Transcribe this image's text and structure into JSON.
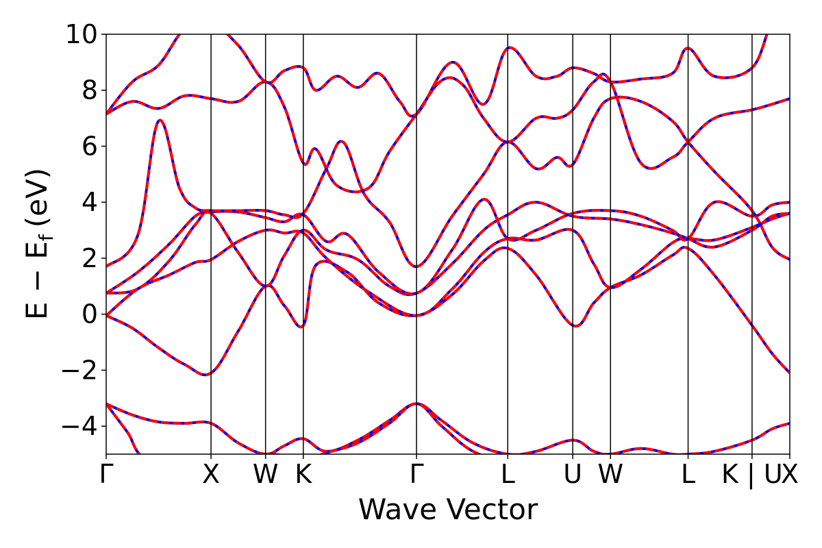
{
  "chart_data": {
    "type": "line",
    "title": "",
    "xlabel": "Wave Vector",
    "ylabel": "E − E",
    "ylabel_subscript": "f",
    "ylabel_unit": "(eV)",
    "ylim": [
      -5,
      10
    ],
    "yticks": [
      {
        "value": 10,
        "label": "10"
      },
      {
        "value": 8,
        "label": "8"
      },
      {
        "value": 6,
        "label": "6"
      },
      {
        "value": 4,
        "label": "4"
      },
      {
        "value": 2,
        "label": "2"
      },
      {
        "value": 0,
        "label": "0"
      },
      {
        "value": -2,
        "label": "−2"
      },
      {
        "value": -4,
        "label": "−4"
      }
    ],
    "xlim": [
      0,
      6.52
    ],
    "kpoints": [
      {
        "label": "Γ",
        "x": 0.0
      },
      {
        "label": "X",
        "x": 1.0
      },
      {
        "label": "W",
        "x": 1.52
      },
      {
        "label": "K",
        "x": 1.88
      },
      {
        "label": "Γ",
        "x": 2.96
      },
      {
        "label": "L",
        "x": 3.83
      },
      {
        "label": "U",
        "x": 4.45
      },
      {
        "label": "W",
        "x": 4.81
      },
      {
        "label": "L",
        "x": 5.55
      },
      {
        "label": "K | U",
        "x": 6.16
      },
      {
        "label": "X",
        "x": 6.52
      }
    ],
    "series_style": [
      {
        "color": "#0000ff",
        "style": "solid"
      },
      {
        "color": "#ff0000",
        "style": "dashed"
      }
    ],
    "bands": [
      [
        [
          0,
          -0.05
        ],
        [
          0.25,
          -0.5
        ],
        [
          0.5,
          -1.2
        ],
        [
          0.75,
          -1.8
        ],
        [
          1,
          -2.1
        ],
        [
          1.26,
          -0.6
        ],
        [
          1.52,
          1.0
        ],
        [
          1.7,
          0.3
        ],
        [
          1.88,
          -0.4
        ],
        [
          2.0,
          1.75
        ],
        [
          2.3,
          1.5
        ],
        [
          2.6,
          0.4
        ],
        [
          2.96,
          -0.05
        ],
        [
          3.3,
          0.7
        ],
        [
          3.6,
          1.9
        ],
        [
          3.83,
          2.35
        ],
        [
          4.1,
          1.4
        ],
        [
          4.45,
          -0.4
        ],
        [
          4.65,
          0.4
        ],
        [
          4.81,
          0.95
        ],
        [
          5.1,
          1.4
        ],
        [
          5.4,
          2.1
        ],
        [
          5.55,
          2.35
        ],
        [
          5.8,
          1.4
        ],
        [
          6.16,
          -0.4
        ],
        [
          6.35,
          -1.4
        ],
        [
          6.52,
          -2.1
        ]
      ],
      [
        [
          0,
          -0.05
        ],
        [
          0.3,
          0.9
        ],
        [
          0.6,
          1.4
        ],
        [
          0.85,
          1.85
        ],
        [
          1,
          1.95
        ],
        [
          1.26,
          2.6
        ],
        [
          1.52,
          3.0
        ],
        [
          1.7,
          2.9
        ],
        [
          1.88,
          2.9
        ],
        [
          2.1,
          2.0
        ],
        [
          2.5,
          0.8
        ],
        [
          2.96,
          -0.05
        ],
        [
          3.3,
          0.9
        ],
        [
          3.6,
          2.2
        ],
        [
          3.83,
          2.7
        ],
        [
          4.1,
          2.65
        ],
        [
          4.45,
          3.0
        ],
        [
          4.65,
          1.8
        ],
        [
          4.81,
          0.95
        ],
        [
          5.1,
          1.6
        ],
        [
          5.4,
          2.55
        ],
        [
          5.55,
          2.7
        ],
        [
          5.8,
          2.65
        ],
        [
          6.16,
          3.1
        ],
        [
          6.35,
          3.4
        ],
        [
          6.52,
          3.6
        ]
      ],
      [
        [
          0,
          0.75
        ],
        [
          0.3,
          0.9
        ],
        [
          0.6,
          1.9
        ],
        [
          0.85,
          3.2
        ],
        [
          1,
          3.6
        ],
        [
          1.26,
          2.2
        ],
        [
          1.52,
          1.0
        ],
        [
          1.7,
          2.1
        ],
        [
          1.88,
          3.0
        ],
        [
          2.1,
          2.3
        ],
        [
          2.4,
          1.95
        ],
        [
          2.7,
          1.0
        ],
        [
          2.96,
          0.75
        ],
        [
          3.3,
          1.8
        ],
        [
          3.6,
          3.0
        ],
        [
          3.83,
          3.55
        ],
        [
          4.1,
          4.0
        ],
        [
          4.45,
          3.5
        ],
        [
          4.81,
          3.4
        ],
        [
          5.1,
          3.2
        ],
        [
          5.4,
          2.9
        ],
        [
          5.55,
          2.7
        ],
        [
          5.8,
          2.4
        ],
        [
          6.16,
          3.0
        ],
        [
          6.35,
          3.5
        ],
        [
          6.52,
          3.6
        ]
      ],
      [
        [
          0,
          0.75
        ],
        [
          0.3,
          1.5
        ],
        [
          0.6,
          2.5
        ],
        [
          0.85,
          3.5
        ],
        [
          1,
          3.65
        ],
        [
          1.26,
          3.65
        ],
        [
          1.52,
          3.45
        ],
        [
          1.7,
          3.3
        ],
        [
          1.88,
          3.55
        ],
        [
          2.1,
          2.6
        ],
        [
          2.3,
          2.85
        ],
        [
          2.6,
          1.5
        ],
        [
          2.96,
          0.75
        ],
        [
          3.3,
          2.3
        ],
        [
          3.6,
          4.1
        ],
        [
          3.83,
          2.7
        ],
        [
          4.1,
          3.0
        ],
        [
          4.45,
          3.6
        ],
        [
          4.81,
          3.7
        ],
        [
          5.1,
          3.5
        ],
        [
          5.4,
          3.0
        ],
        [
          5.55,
          2.7
        ],
        [
          5.8,
          4.0
        ],
        [
          6.16,
          3.5
        ],
        [
          6.35,
          3.9
        ],
        [
          6.52,
          4.0
        ]
      ],
      [
        [
          0,
          1.7
        ],
        [
          0.3,
          2.8
        ],
        [
          0.5,
          6.9
        ],
        [
          0.7,
          4.5
        ],
        [
          0.85,
          3.8
        ],
        [
          1,
          3.7
        ],
        [
          1.26,
          3.7
        ],
        [
          1.52,
          3.7
        ],
        [
          1.7,
          3.55
        ],
        [
          1.88,
          3.6
        ],
        [
          2.1,
          5.2
        ],
        [
          2.26,
          6.15
        ],
        [
          2.46,
          4.3
        ],
        [
          2.7,
          3.3
        ],
        [
          2.96,
          1.7
        ],
        [
          3.3,
          3.5
        ],
        [
          3.6,
          5.0
        ],
        [
          3.83,
          6.15
        ],
        [
          4.1,
          5.2
        ],
        [
          4.3,
          5.6
        ],
        [
          4.45,
          5.35
        ],
        [
          4.65,
          7.0
        ],
        [
          4.81,
          7.7
        ],
        [
          5.1,
          7.6
        ],
        [
          5.4,
          6.9
        ],
        [
          5.55,
          6.15
        ],
        [
          5.8,
          5.1
        ],
        [
          6.16,
          3.7
        ],
        [
          6.35,
          2.4
        ],
        [
          6.52,
          1.95
        ]
      ],
      [
        [
          0,
          7.15
        ],
        [
          0.25,
          7.6
        ],
        [
          0.5,
          7.35
        ],
        [
          0.75,
          7.8
        ],
        [
          1,
          7.7
        ],
        [
          1.26,
          7.6
        ],
        [
          1.52,
          8.3
        ],
        [
          1.7,
          7.4
        ],
        [
          1.88,
          5.4
        ],
        [
          2.0,
          5.9
        ],
        [
          2.2,
          4.6
        ],
        [
          2.5,
          4.5
        ],
        [
          2.7,
          5.8
        ],
        [
          2.96,
          7.15
        ],
        [
          3.2,
          8.35
        ],
        [
          3.4,
          8.2
        ],
        [
          3.6,
          7.0
        ],
        [
          3.83,
          6.15
        ],
        [
          4.1,
          7.0
        ],
        [
          4.3,
          7.0
        ],
        [
          4.45,
          7.3
        ],
        [
          4.65,
          8.3
        ],
        [
          4.81,
          8.3
        ],
        [
          5.1,
          5.4
        ],
        [
          5.4,
          5.6
        ],
        [
          5.55,
          6.15
        ],
        [
          5.8,
          7.0
        ],
        [
          6.16,
          7.3
        ],
        [
          6.35,
          7.5
        ],
        [
          6.52,
          7.7
        ]
      ],
      [
        [
          0,
          7.15
        ],
        [
          0.25,
          8.3
        ],
        [
          0.5,
          8.9
        ],
        [
          0.75,
          10.2
        ],
        [
          1,
          10.4
        ],
        [
          1.26,
          9.6
        ],
        [
          1.52,
          8.3
        ],
        [
          1.7,
          8.7
        ],
        [
          1.88,
          8.8
        ],
        [
          2.0,
          8.0
        ],
        [
          2.2,
          8.5
        ],
        [
          2.4,
          8.1
        ],
        [
          2.6,
          8.6
        ],
        [
          2.8,
          7.6
        ],
        [
          2.96,
          7.15
        ],
        [
          3.3,
          9.0
        ],
        [
          3.6,
          7.5
        ],
        [
          3.83,
          9.5
        ],
        [
          4.1,
          8.5
        ],
        [
          4.3,
          8.5
        ],
        [
          4.45,
          8.8
        ],
        [
          4.65,
          8.6
        ],
        [
          4.81,
          8.3
        ],
        [
          5.1,
          8.4
        ],
        [
          5.4,
          8.6
        ],
        [
          5.55,
          9.5
        ],
        [
          5.8,
          8.5
        ],
        [
          6.16,
          8.8
        ],
        [
          6.35,
          10.4
        ],
        [
          6.52,
          10.6
        ]
      ],
      [
        [
          0,
          -3.2
        ],
        [
          0.25,
          -3.6
        ],
        [
          0.5,
          -3.85
        ],
        [
          0.75,
          -3.9
        ],
        [
          1,
          -3.9
        ],
        [
          1.26,
          -4.6
        ],
        [
          1.52,
          -5.0
        ],
        [
          1.7,
          -4.7
        ],
        [
          1.88,
          -4.45
        ],
        [
          2.1,
          -4.9
        ],
        [
          2.4,
          -4.5
        ],
        [
          2.7,
          -3.8
        ],
        [
          2.96,
          -3.2
        ],
        [
          3.2,
          -3.8
        ],
        [
          3.5,
          -4.6
        ],
        [
          3.83,
          -5.0
        ],
        [
          4.1,
          -4.9
        ],
        [
          4.45,
          -4.5
        ],
        [
          4.65,
          -4.9
        ],
        [
          4.81,
          -5.0
        ],
        [
          5.1,
          -4.8
        ],
        [
          5.4,
          -5.0
        ],
        [
          5.55,
          -5.0
        ],
        [
          5.8,
          -4.9
        ],
        [
          6.16,
          -4.5
        ],
        [
          6.35,
          -4.1
        ],
        [
          6.52,
          -3.9
        ]
      ],
      [
        [
          0,
          -3.2
        ],
        [
          0.2,
          -4.2
        ],
        [
          0.4,
          -5.2
        ],
        [
          1,
          -5.4
        ],
        [
          1.52,
          -5.0
        ],
        [
          1.88,
          -5.2
        ],
        [
          2.1,
          -4.95
        ],
        [
          2.4,
          -4.6
        ],
        [
          2.7,
          -3.9
        ],
        [
          2.96,
          -3.2
        ],
        [
          3.2,
          -4.0
        ],
        [
          3.5,
          -4.9
        ],
        [
          3.83,
          -5.2
        ],
        [
          4.45,
          -5.1
        ],
        [
          4.81,
          -5.1
        ],
        [
          5.55,
          -5.3
        ],
        [
          6.52,
          -5.2
        ]
      ]
    ]
  }
}
